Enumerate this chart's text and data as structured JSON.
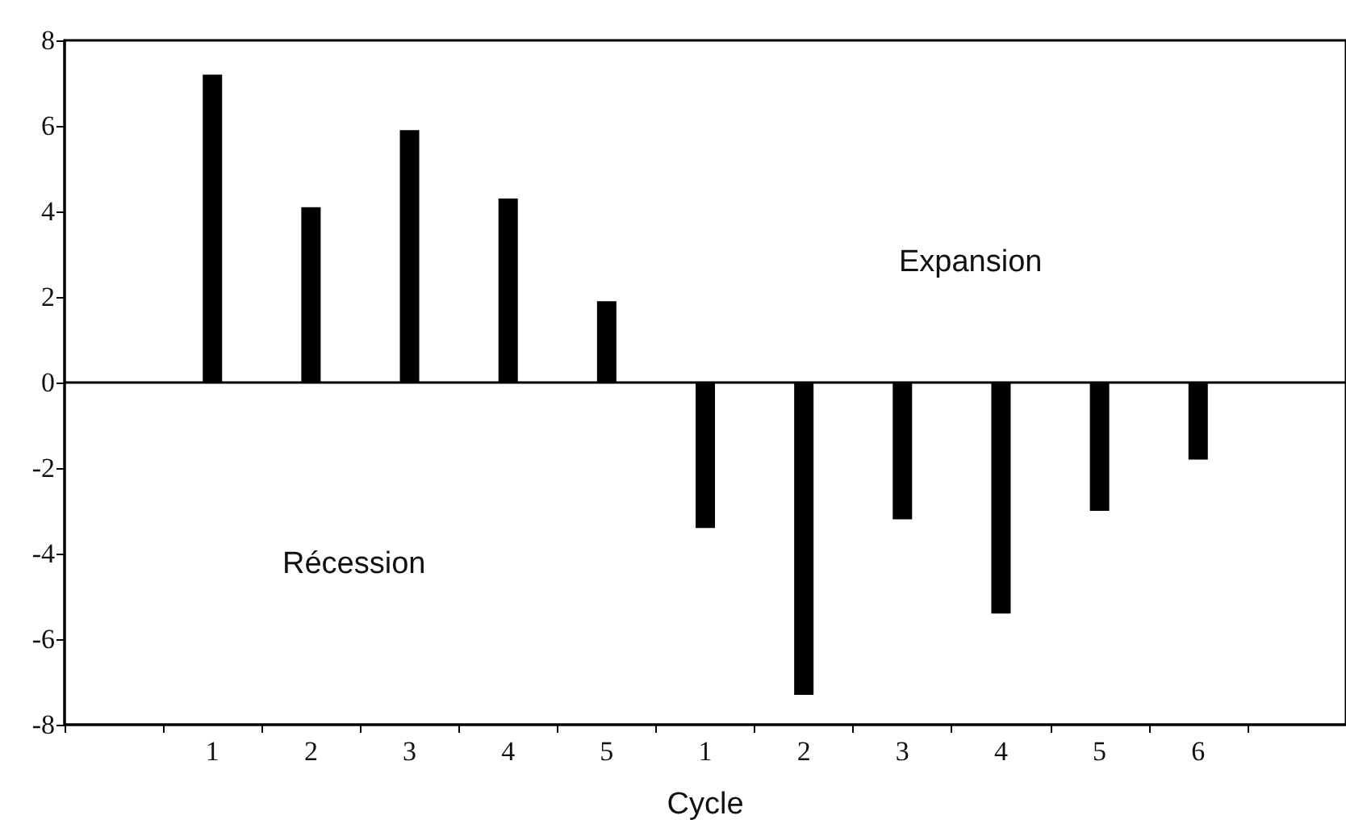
{
  "chart_data": {
    "type": "bar",
    "xlabel": "Cycle",
    "categories": [
      null,
      "1",
      "2",
      "3",
      "4",
      "5",
      "1",
      "2",
      "3",
      "4",
      "5",
      "6",
      null
    ],
    "values": [
      null,
      7.2,
      4.1,
      5.9,
      4.3,
      1.9,
      -3.4,
      -7.3,
      -3.2,
      -5.4,
      -3.0,
      -1.8,
      null
    ],
    "color": "#000000",
    "ylim": [
      -8,
      8
    ],
    "yticks": [
      -8,
      -6,
      -4,
      -2,
      0,
      2,
      4,
      6,
      8
    ],
    "ref_lines": [
      {
        "axis": "y",
        "value": 0
      }
    ],
    "annotations": [
      "Expansion",
      "Récession"
    ],
    "grid": false
  }
}
